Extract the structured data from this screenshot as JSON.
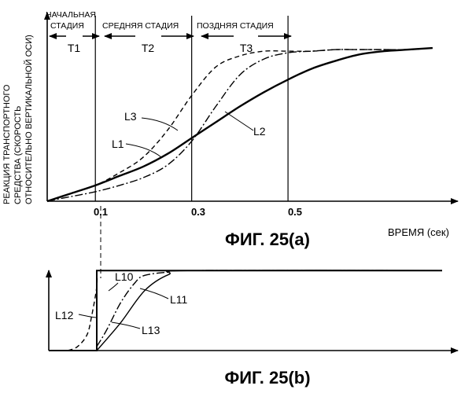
{
  "chart_data": [
    {
      "type": "line",
      "figure_label": "ФИГ. 25(a)",
      "xlabel": "ВРЕМЯ (сек)",
      "ylabel_lines": [
        "РЕАКЦИЯ ТРАНСПОРТНОГО",
        "СРЕДСТВА (СКОРОСТЬ",
        "ОТНОСИТЕЛЬНО ВЕРТИКАЛЬНОЙ ОСИ)"
      ],
      "xlim": [
        0,
        0.82
      ],
      "ylim": [
        0,
        1.05
      ],
      "x_ticks": [
        "0.1",
        "0.3",
        "0.5"
      ],
      "stages": [
        {
          "name": "НАЧАЛЬНАЯ СТАДИЯ",
          "period": "T1",
          "start": 0,
          "end": 0.1
        },
        {
          "name": "СРЕДНЯЯ СТАДИЯ",
          "period": "T2",
          "start": 0.1,
          "end": 0.3
        },
        {
          "name": "ПОЗДНЯЯ СТАДИЯ",
          "period": "T3",
          "start": 0.3,
          "end": 0.5
        }
      ],
      "series": [
        {
          "name": "L1",
          "style": "solid",
          "x": [
            0,
            0.05,
            0.1,
            0.15,
            0.2,
            0.25,
            0.3,
            0.35,
            0.4,
            0.45,
            0.5,
            0.55,
            0.6,
            0.65,
            0.7,
            0.75,
            0.8
          ],
          "y": [
            0,
            0.05,
            0.1,
            0.16,
            0.22,
            0.3,
            0.4,
            0.5,
            0.6,
            0.69,
            0.77,
            0.84,
            0.89,
            0.93,
            0.95,
            0.96,
            0.97
          ]
        },
        {
          "name": "L2",
          "style": "dashdot",
          "x": [
            0,
            0.05,
            0.1,
            0.15,
            0.2,
            0.25,
            0.3,
            0.35,
            0.4,
            0.45,
            0.5,
            0.55,
            0.6,
            0.65,
            0.7,
            0.75,
            0.8
          ],
          "y": [
            0,
            0.03,
            0.06,
            0.1,
            0.15,
            0.23,
            0.38,
            0.6,
            0.8,
            0.9,
            0.94,
            0.95,
            0.96,
            0.96,
            0.96,
            0.96,
            0.97
          ]
        },
        {
          "name": "L3",
          "style": "dashed",
          "x": [
            0,
            0.05,
            0.1,
            0.15,
            0.2,
            0.25,
            0.3,
            0.35,
            0.4,
            0.45,
            0.5,
            0.55,
            0.6,
            0.65,
            0.7,
            0.75,
            0.8
          ],
          "y": [
            0,
            0.05,
            0.1,
            0.18,
            0.28,
            0.45,
            0.67,
            0.85,
            0.92,
            0.95,
            0.95,
            0.95,
            0.96,
            0.96,
            0.96,
            0.96,
            0.97
          ]
        }
      ]
    },
    {
      "type": "line",
      "figure_label": "ФИГ. 25(b)",
      "xlim": [
        0,
        0.82
      ],
      "ylim": [
        0,
        1.1
      ],
      "series": [
        {
          "name": "L10",
          "style": "solid",
          "x": [
            0,
            0.1,
            0.1,
            0.82
          ],
          "y": [
            0,
            0,
            1,
            1
          ]
        },
        {
          "name": "L11",
          "style": "dashdot",
          "x": [
            0.1,
            0.12,
            0.15,
            0.18,
            0.2,
            0.25,
            0.3,
            0.82
          ],
          "y": [
            0.05,
            0.25,
            0.6,
            0.85,
            0.94,
            0.98,
            1,
            1
          ]
        },
        {
          "name": "L12",
          "style": "dashed",
          "x": [
            0.04,
            0.06,
            0.08,
            0.09,
            0.1,
            0.1
          ],
          "y": [
            0,
            0.05,
            0.2,
            0.45,
            0.8,
            1
          ]
        },
        {
          "name": "L13",
          "style": "solid",
          "x": [
            0.1,
            0.15,
            0.2,
            0.25,
            0.3,
            0.82
          ],
          "y": [
            0,
            0.35,
            0.75,
            0.95,
            1,
            1
          ]
        }
      ]
    }
  ],
  "labels": {
    "stage_initial_line1": "НАЧАЛЬНАЯ",
    "stage_initial_line2": "СТАДИЯ",
    "stage_middle": "СРЕДНЯЯ СТАДИЯ",
    "stage_late": "ПОЗДНЯЯ СТАДИЯ",
    "T1": "T1",
    "T2": "T2",
    "T3": "T3",
    "tick_01": "0.1",
    "tick_03": "0.3",
    "tick_05": "0.5",
    "xlabel": "ВРЕМЯ (сек)",
    "ylabel_line1": "РЕАКЦИЯ ТРАНСПОРТНОГО",
    "ylabel_line2": "СРЕДСТВА (СКОРОСТЬ",
    "ylabel_line3": "ОТНОСИТЕЛЬНО ВЕРТИКАЛЬНОЙ ОСИ)",
    "fig_a": "ФИГ. 25(a)",
    "fig_b": "ФИГ. 25(b)"
  }
}
